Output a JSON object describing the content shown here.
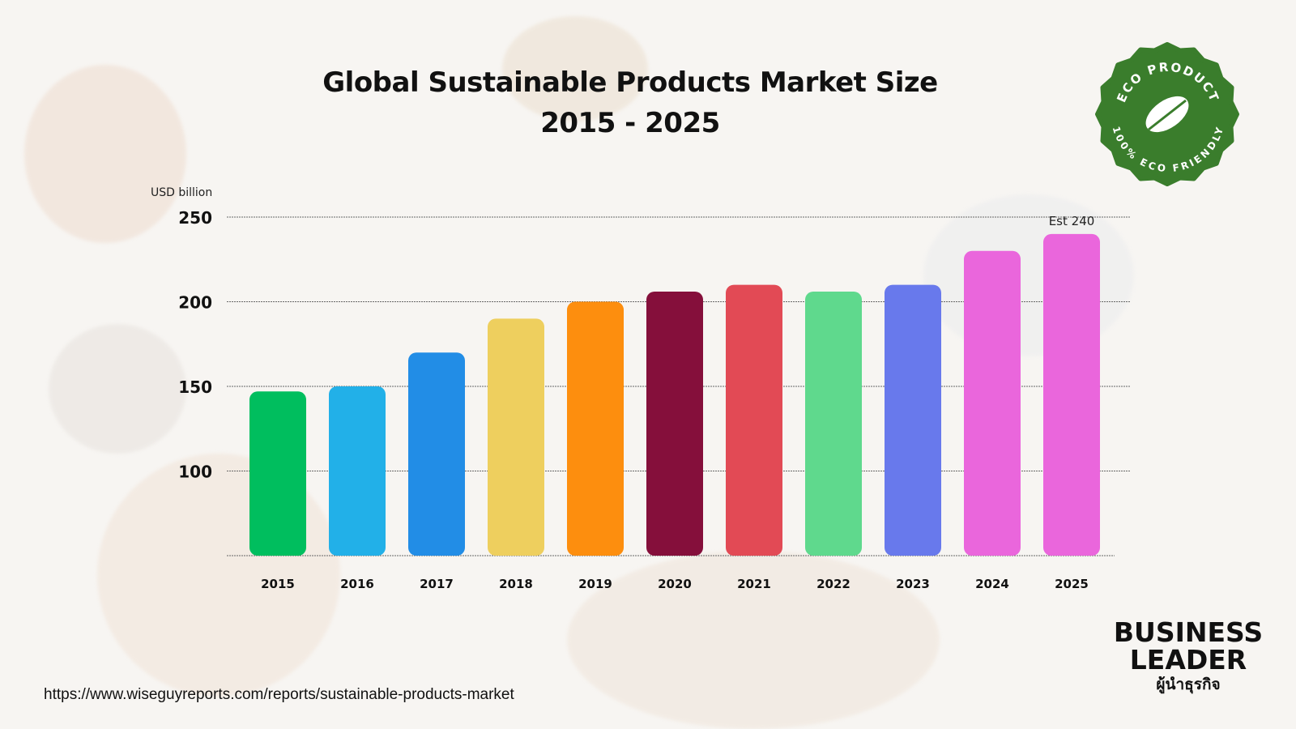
{
  "chart_data": {
    "type": "bar",
    "title": "Global Sustainable Products Market Size",
    "subtitle": "2015 - 2025",
    "xlabel": "",
    "ylabel": "USD billion",
    "categories": [
      "2015",
      "2016",
      "2017",
      "2018",
      "2019",
      "2020",
      "2021",
      "2022",
      "2023",
      "2024",
      "2025"
    ],
    "values": [
      147,
      150,
      170,
      190,
      200,
      206,
      210,
      206,
      210,
      230,
      240
    ],
    "colors": [
      "#00be5e",
      "#22b0e8",
      "#228de6",
      "#eecf5e",
      "#fd8e0e",
      "#850f3b",
      "#e24a55",
      "#5fd98d",
      "#6879ec",
      "#ea66dc",
      "#ea66dc"
    ],
    "ylim": [
      50,
      250
    ],
    "yticks": [
      100,
      150,
      200,
      250
    ],
    "grid": true,
    "annotations": [
      {
        "category": "2025",
        "text": "Est 240"
      }
    ]
  },
  "source": "https://www.wiseguyreports.com/reports/sustainable-products-market",
  "badge": {
    "top_text": "ECO PRODUCT",
    "bottom_text": "100% ECO FRIENDLY",
    "color": "#3a7d2c"
  },
  "brand": {
    "line1": "BUSINESS",
    "line2": "LEADER",
    "line3": "ผู้นำธุรกิจ"
  }
}
